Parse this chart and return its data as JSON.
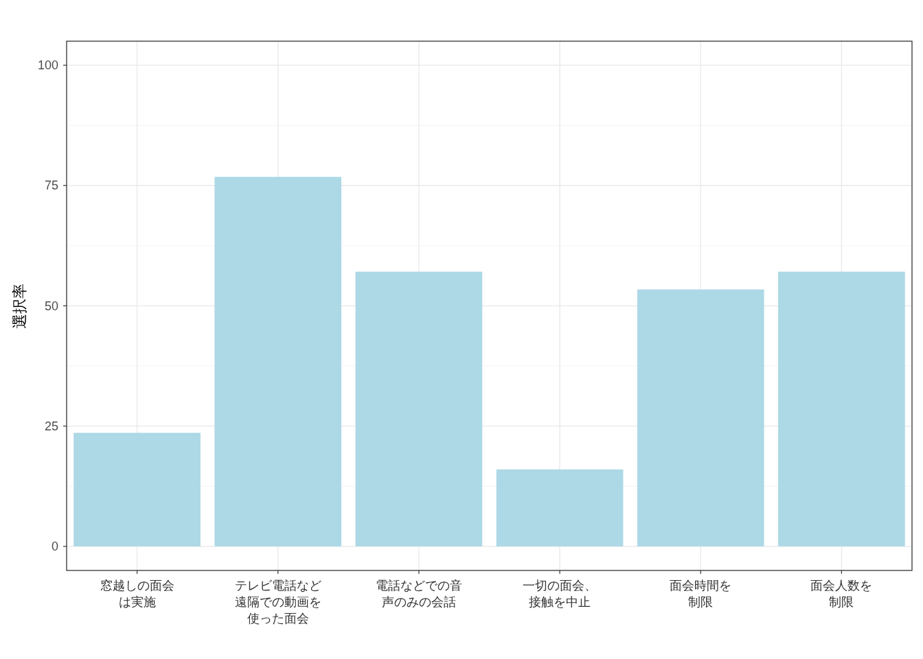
{
  "chart_data": {
    "type": "bar",
    "ylabel": "選択率",
    "categories": [
      "窓越しの面会は実施",
      "テレビ電話など遠隔での動画を使った面会",
      "電話などでの音声のみの会話",
      "一切の面会、接触を中止",
      "面会時間を制限",
      "面会人数を制限"
    ],
    "values": [
      23.6,
      76.8,
      57.1,
      16.0,
      53.4,
      57.1
    ],
    "color": "#add8e6",
    "ylim": [
      -5,
      105
    ],
    "yticks": [
      0,
      25,
      50,
      75,
      100
    ],
    "grid": true
  }
}
